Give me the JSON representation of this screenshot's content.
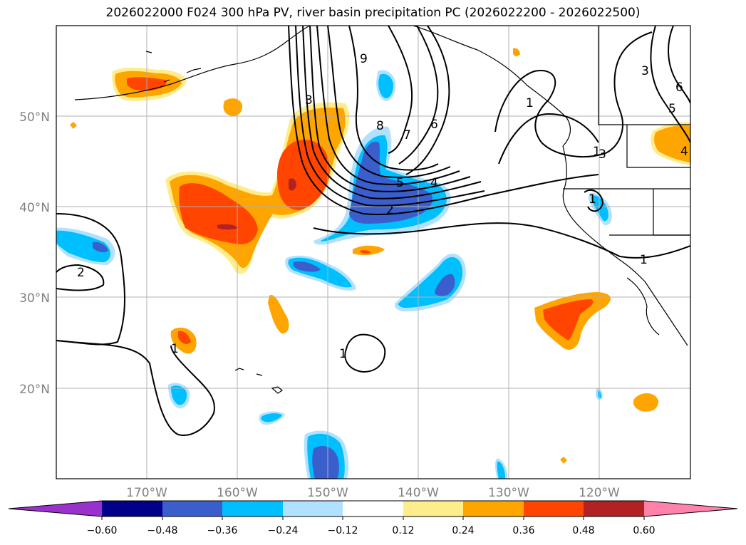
{
  "title": "2026022000 F024 300 hPa PV, river basin precipitation PC (2026022200 - 2026022500)",
  "map": {
    "lon_labels": [
      "170°W",
      "160°W",
      "150°W",
      "140°W",
      "130°W",
      "120°W"
    ],
    "lat_labels": [
      "50°N",
      "40°N",
      "30°N",
      "20°N"
    ],
    "pv_contour_labels": [
      "9",
      "8",
      "7",
      "6",
      "5",
      "4",
      "3",
      "2",
      "1",
      "3",
      "5",
      "6",
      "4",
      "1",
      "1",
      "1",
      "2",
      "1",
      "1",
      "3"
    ]
  },
  "colorbar": {
    "ticks": [
      "−0.60",
      "−0.48",
      "−0.36",
      "−0.24",
      "−0.12",
      "0.12",
      "0.24",
      "0.36",
      "0.48",
      "0.60"
    ],
    "colors": {
      "under": "#9932cc",
      "neg_060_048": "#00008b",
      "neg_048_036": "#3a5fcd",
      "neg_036_024": "#00bfff",
      "neg_024_012": "#b0e2ff",
      "neutral": "#ffffff",
      "pos_012_024": "#ffec8b",
      "pos_024_036": "#ffa500",
      "pos_036_048": "#ff4500",
      "pos_048_060": "#b22222",
      "over": "#ff82ab"
    }
  }
}
